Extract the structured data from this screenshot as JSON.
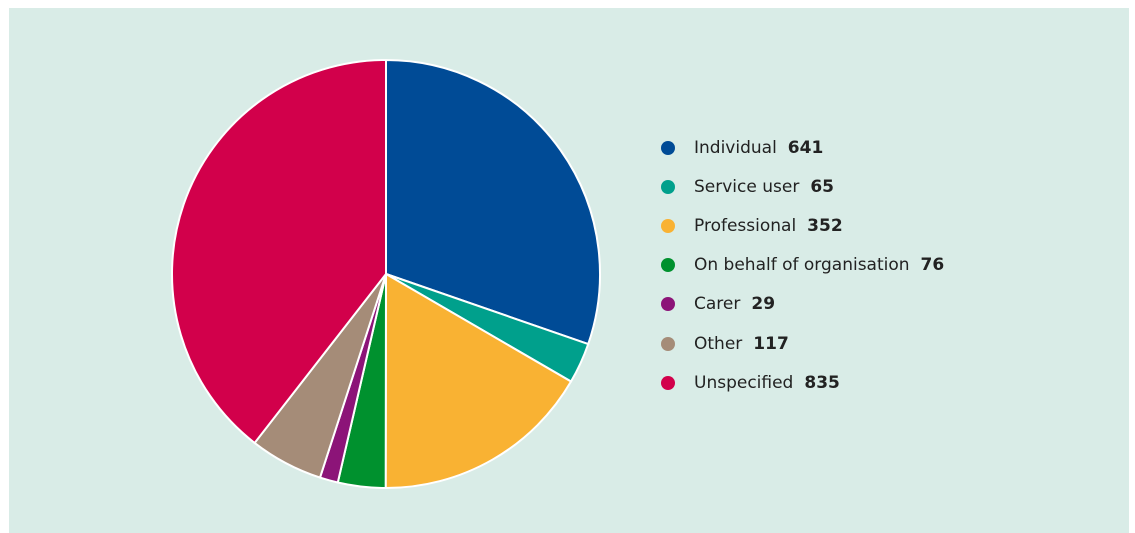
{
  "chart_data": {
    "type": "pie",
    "slices": [
      {
        "label": "Individual",
        "value": 641,
        "color": "#004b96"
      },
      {
        "label": "Service user",
        "value": 65,
        "color": "#00a08c"
      },
      {
        "label": "Professional",
        "value": 352,
        "color": "#f9b233"
      },
      {
        "label": "On behalf of organisation",
        "value": 76,
        "color": "#00912e"
      },
      {
        "label": "Carer",
        "value": 29,
        "color": "#8c1478"
      },
      {
        "label": "Other",
        "value": 117,
        "color": "#a58c78"
      },
      {
        "label": "Unspecified",
        "value": 835,
        "color": "#d2004b"
      }
    ],
    "legend_position": "right",
    "start_angle": "12 o'clock",
    "direction": "clockwise",
    "slice_border_color": "#ffffff",
    "background_color": "#d9ece7"
  }
}
